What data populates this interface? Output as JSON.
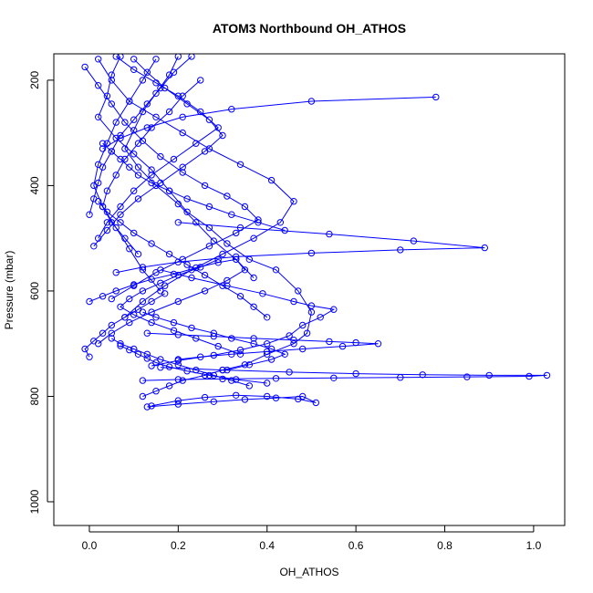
{
  "chart_data": {
    "type": "line",
    "title": "ATOM3 Northbound OH_ATHOS",
    "xlabel": "OH_ATHOS",
    "ylabel": "Pressure (mbar)",
    "xlim": [
      -0.08,
      1.07
    ],
    "ylim": [
      1045,
      150
    ],
    "y_reversed": true,
    "xticks": [
      0.0,
      0.2,
      0.4,
      0.6,
      0.8,
      1.0
    ],
    "xtick_labels": [
      "0.0",
      "0.2",
      "0.4",
      "0.6",
      "0.8",
      "1.0"
    ],
    "yticks": [
      200,
      400,
      600,
      800,
      1000
    ],
    "ytick_labels": [
      "200",
      "400",
      "600",
      "800",
      "1000"
    ],
    "grid": false,
    "series_color": "#0000ff",
    "marker": "open-circle",
    "series": [
      {
        "x": [
          0.07,
          0.05,
          0.04,
          0.02,
          0.06,
          0.1,
          0.14,
          0.18,
          0.22,
          0.27,
          0.31,
          0.36,
          0.42,
          0.47,
          0.5,
          0.49,
          0.46,
          0.4,
          0.35,
          0.3,
          0.26,
          0.21,
          0.18,
          0.15,
          0.12
        ],
        "y": [
          155,
          190,
          230,
          270,
          310,
          340,
          370,
          410,
          450,
          480,
          510,
          540,
          560,
          600,
          640,
          680,
          700,
          720,
          740,
          750,
          760,
          770,
          780,
          790,
          800
        ]
      },
      {
        "x": [
          0.78,
          0.5,
          0.32,
          0.21,
          0.13,
          0.07,
          0.03
        ],
        "y": [
          232,
          240,
          255,
          270,
          290,
          310,
          330
        ]
      },
      {
        "x": [
          0.02,
          0.05,
          0.09,
          0.15,
          0.21,
          0.27,
          0.34,
          0.41,
          0.46,
          0.43,
          0.37,
          0.3,
          0.23,
          0.17,
          0.12,
          0.08
        ],
        "y": [
          160,
          200,
          240,
          270,
          300,
          330,
          360,
          390,
          430,
          470,
          500,
          530,
          560,
          590,
          620,
          650
        ]
      },
      {
        "x": [
          0.2,
          0.34,
          0.54,
          0.73,
          0.89,
          0.7,
          0.5,
          0.33,
          0.2,
          0.12,
          0.06
        ],
        "y": [
          470,
          480,
          492,
          505,
          518,
          522,
          528,
          535,
          545,
          555,
          565
        ]
      },
      {
        "x": [
          0.16,
          0.23,
          0.31,
          0.39,
          0.46,
          0.5,
          0.55,
          0.52,
          0.48,
          0.45,
          0.4,
          0.34,
          0.28,
          0.2,
          0.14
        ],
        "y": [
          560,
          575,
          590,
          605,
          620,
          628,
          635,
          650,
          665,
          685,
          700,
          712,
          722,
          732,
          742
        ]
      },
      {
        "x": [
          0.13,
          0.2,
          0.28,
          0.37,
          0.46,
          0.54,
          0.6,
          0.65,
          0.57,
          0.48,
          0.4,
          0.32,
          0.25,
          0.2
        ],
        "y": [
          680,
          683,
          686,
          690,
          693,
          696,
          698,
          700,
          705,
          710,
          715,
          720,
          725,
          730
        ]
      },
      {
        "x": [
          0.16,
          0.3,
          0.45,
          0.6,
          0.75,
          0.9,
          1.03,
          0.99,
          0.85,
          0.7,
          0.55,
          0.42,
          0.3,
          0.2,
          0.12
        ],
        "y": [
          745,
          750,
          754,
          757,
          759,
          760,
          760,
          762,
          763,
          764,
          765,
          766,
          767,
          768,
          770
        ]
      },
      {
        "x": [
          0.13,
          0.2,
          0.28,
          0.35,
          0.42,
          0.48,
          0.51,
          0.47,
          0.4,
          0.33,
          0.26,
          0.2,
          0.14
        ],
        "y": [
          820,
          815,
          810,
          806,
          803,
          800,
          812,
          805,
          800,
          798,
          802,
          808,
          818
        ]
      },
      {
        "x": [
          0.0,
          0.03,
          0.06,
          0.1,
          0.14,
          0.19,
          0.24,
          0.29,
          0.33,
          0.35,
          0.31,
          0.26,
          0.2,
          0.14,
          0.09,
          0.05,
          0.02
        ],
        "y": [
          620,
          610,
          600,
          588,
          578,
          568,
          556,
          546,
          540,
          560,
          580,
          600,
          620,
          640,
          660,
          680,
          700
        ]
      },
      {
        "x": [
          -0.01,
          0.02,
          0.05,
          0.08,
          0.12,
          0.16,
          0.21,
          0.26,
          0.31,
          0.35,
          0.38,
          0.33,
          0.27,
          0.21,
          0.15,
          0.1,
          0.05
        ],
        "y": [
          175,
          210,
          245,
          280,
          315,
          345,
          375,
          400,
          420,
          440,
          465,
          490,
          515,
          540,
          565,
          590,
          615
        ]
      },
      {
        "x": [
          0.06,
          0.1,
          0.15,
          0.2,
          0.25,
          0.29,
          0.24,
          0.19,
          0.14,
          0.1,
          0.07,
          0.04,
          0.02
        ],
        "y": [
          155,
          180,
          205,
          230,
          260,
          290,
          320,
          350,
          380,
          410,
          440,
          470,
          500
        ]
      },
      {
        "x": [
          0.44,
          0.38,
          0.32,
          0.27,
          0.22,
          0.18,
          0.14,
          0.11,
          0.09,
          0.07,
          0.05,
          0.03
        ],
        "y": [
          485,
          470,
          455,
          440,
          425,
          410,
          395,
          380,
          365,
          350,
          335,
          320
        ]
      },
      {
        "x": [
          0.29,
          0.25,
          0.2,
          0.16,
          0.12,
          0.09,
          0.07,
          0.1,
          0.14,
          0.19,
          0.24,
          0.29,
          0.34
        ],
        "y": [
          540,
          555,
          570,
          585,
          600,
          615,
          630,
          645,
          660,
          675,
          690,
          705,
          720
        ]
      },
      {
        "x": [
          0.4,
          0.33,
          0.27,
          0.22,
          0.18,
          0.15,
          0.13,
          0.11,
          0.09,
          0.07
        ],
        "y": [
          775,
          768,
          760,
          752,
          744,
          736,
          728,
          720,
          712,
          704
        ]
      },
      {
        "x": [
          0.1,
          0.13,
          0.17,
          0.22,
          0.27,
          0.3,
          0.26,
          0.21,
          0.16,
          0.11,
          0.07,
          0.04,
          0.01
        ],
        "y": [
          160,
          185,
          215,
          245,
          275,
          305,
          335,
          365,
          395,
          425,
          455,
          485,
          515
        ]
      },
      {
        "x": [
          0.2,
          0.18,
          0.15,
          0.12,
          0.1,
          0.08,
          0.11,
          0.15,
          0.2,
          0.24,
          0.28,
          0.33,
          0.37
        ],
        "y": [
          155,
          190,
          225,
          260,
          295,
          330,
          365,
          400,
          435,
          470,
          505,
          540,
          575
        ]
      },
      {
        "x": [
          0.23,
          0.19,
          0.16,
          0.13,
          0.1,
          0.07,
          0.05,
          0.03,
          0.02,
          0.01,
          0.0
        ],
        "y": [
          155,
          185,
          215,
          245,
          275,
          305,
          335,
          365,
          395,
          425,
          455
        ]
      },
      {
        "x": [
          0.12,
          0.15,
          0.19,
          0.23,
          0.28,
          0.32,
          0.37,
          0.41,
          0.44,
          0.41,
          0.36,
          0.31
        ],
        "y": [
          640,
          650,
          660,
          670,
          680,
          690,
          700,
          710,
          720,
          730,
          740,
          750
        ]
      },
      {
        "x": [
          0.02,
          0.04,
          0.07,
          0.1,
          0.14,
          0.18,
          0.22,
          0.26,
          0.3,
          0.34,
          0.37,
          0.4
        ],
        "y": [
          430,
          450,
          470,
          490,
          510,
          530,
          550,
          570,
          590,
          610,
          630,
          650
        ]
      },
      {
        "x": [
          0.15,
          0.12,
          0.09,
          0.06,
          0.04,
          0.02,
          0.01,
          0.03,
          0.06,
          0.09,
          0.12,
          0.16
        ],
        "y": [
          160,
          200,
          240,
          280,
          320,
          360,
          400,
          440,
          480,
          520,
          560,
          600
        ]
      },
      {
        "x": [
          0.25,
          0.21,
          0.18,
          0.14,
          0.11,
          0.08,
          0.06,
          0.04,
          0.03,
          0.05,
          0.08,
          0.11
        ],
        "y": [
          200,
          230,
          260,
          290,
          320,
          350,
          380,
          410,
          440,
          470,
          500,
          530
        ]
      },
      {
        "x": [
          0.05,
          0.07,
          0.1,
          0.13,
          0.16,
          0.2,
          0.24,
          0.28,
          0.32,
          0.36
        ],
        "y": [
          690,
          700,
          710,
          720,
          730,
          740,
          750,
          760,
          770,
          780
        ]
      },
      {
        "x": [
          0.0,
          -0.01,
          0.01,
          0.03,
          0.05,
          0.08,
          0.11,
          0.14,
          0.17
        ],
        "y": [
          725,
          710,
          695,
          680,
          665,
          650,
          635,
          620,
          605
        ]
      }
    ]
  }
}
